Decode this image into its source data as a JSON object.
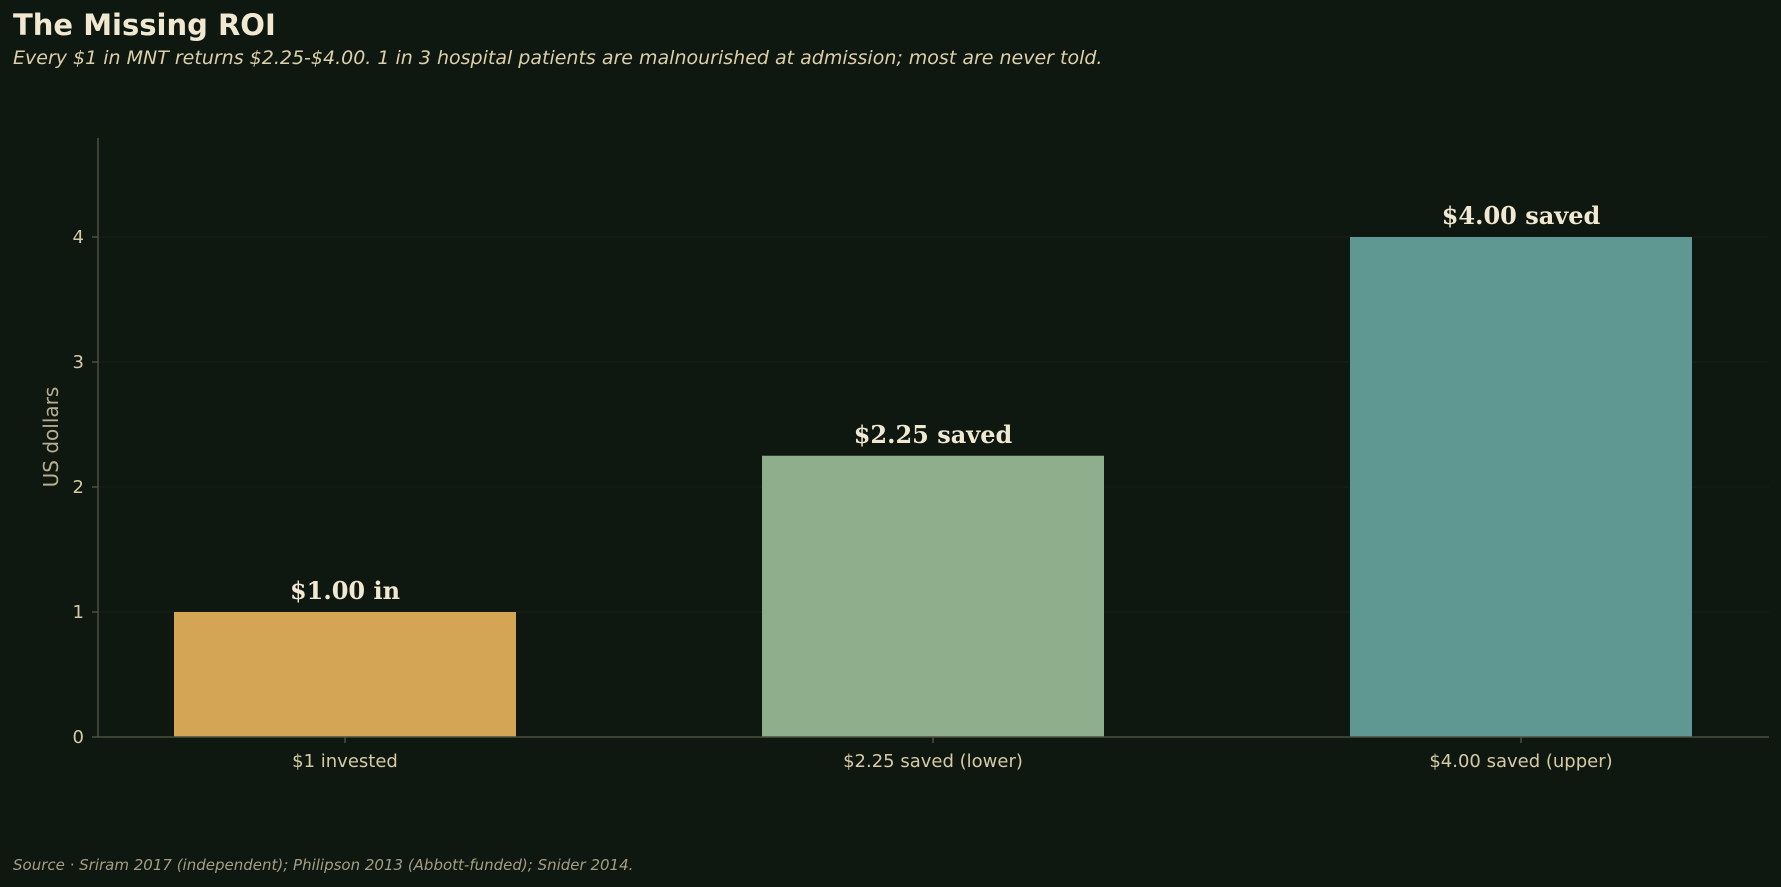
{
  "header": {
    "title": "The Missing ROI",
    "subtitle": "Every $1 in MNT returns $2.25-$4.00. 1 in 3 hospital patients are malnourished at admission; most are never told."
  },
  "footer": {
    "source": "Source · Sriram 2017 (independent); Philipson 2013 (Abbott-funded); Snider 2014."
  },
  "colors": {
    "background": "#0e1811",
    "axis": "#4a5040",
    "gridline": "#152018",
    "bars": [
      "#d4a555",
      "#8fae8b",
      "#5f9892"
    ]
  },
  "chart_data": {
    "type": "bar",
    "categories": [
      "$1 invested",
      "$2.25 saved (lower)",
      "$4.00 saved (upper)"
    ],
    "values": [
      1.0,
      2.25,
      4.0
    ],
    "data_labels": [
      "$1.00 in",
      "$2.25 saved",
      "$4.00 saved"
    ],
    "title": "The Missing ROI",
    "xlabel": "",
    "ylabel": "US dollars",
    "ylim": [
      0,
      4.8
    ],
    "yticks": [
      0,
      1,
      2,
      3,
      4
    ],
    "grid": "horizontal, faint"
  }
}
